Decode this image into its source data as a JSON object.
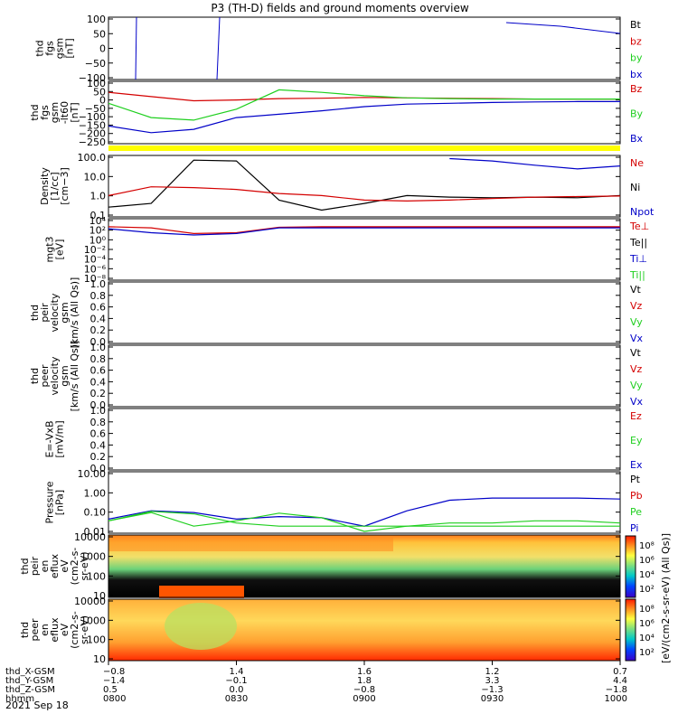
{
  "title": "P3 (TH-D) fields and ground moments overview",
  "colors": {
    "black": "#000000",
    "red": "#d40000",
    "green": "#1fcf1f",
    "blue": "#0000c8",
    "yellow": "#ffff00"
  },
  "panels": [
    {
      "id": "fgs",
      "ylabel": [
        "thd",
        "fgs",
        "gsm",
        "[nT]"
      ],
      "ylim": [
        -100,
        100
      ],
      "ticks": [
        "100",
        "50",
        "0",
        "−50",
        "−100"
      ],
      "legend": [
        "Bt",
        "bz",
        "by",
        "bx"
      ]
    },
    {
      "id": "fgs-filtered",
      "ylabel": [
        "thd",
        "fgs",
        "gsm",
        "-lt60",
        "[nT]"
      ],
      "ylim": [
        -250,
        100
      ],
      "ticks": [
        "100",
        "50",
        "0",
        "−50",
        "−100",
        "−150",
        "−200",
        "−250"
      ],
      "legend": [
        "Bz",
        "By",
        "Bx"
      ]
    },
    {
      "id": "mode-bar",
      "ylabel": [],
      "legend": []
    },
    {
      "id": "density",
      "ylabel": [
        "Density",
        "[1/cc]",
        "[cm−3]"
      ],
      "ylim": [
        0.1,
        300
      ],
      "log": true,
      "ticks": [
        "100.0",
        "10.0",
        "1.0",
        "0.1"
      ],
      "legend": [
        "Ne",
        "Ni",
        "Npot"
      ]
    },
    {
      "id": "temperature",
      "ylabel": [
        "mgt3",
        "[eV]"
      ],
      "ylim": [
        1e-08,
        10000.0
      ],
      "log": true,
      "ticks": [
        "10⁴",
        "10²",
        "10⁰",
        "10⁻²",
        "10⁻⁴",
        "10⁻⁶",
        "10⁻⁸"
      ],
      "legend": [
        "Te⊥",
        "Te||",
        "Ti⊥",
        "Ti||"
      ]
    },
    {
      "id": "peir-velocity",
      "ylabel": [
        "thd",
        "peir",
        "velocity",
        "gsm",
        "[km/s (All Qs)]"
      ],
      "ylim": [
        0,
        1
      ],
      "ticks": [
        "1.0",
        "0.8",
        "0.6",
        "0.4",
        "0.2",
        "0.0"
      ],
      "legend": [
        "Vt",
        "Vz",
        "Vy",
        "Vx"
      ]
    },
    {
      "id": "peer-velocity",
      "ylabel": [
        "thd",
        "peer",
        "velocity",
        "gsm",
        "[km/s (All Qs)]"
      ],
      "ylim": [
        0,
        1
      ],
      "ticks": [
        "1.0",
        "0.8",
        "0.6",
        "0.4",
        "0.2",
        "0.0"
      ],
      "legend": [
        "Vt",
        "Vz",
        "Vy",
        "Vx"
      ]
    },
    {
      "id": "efield",
      "ylabel": [
        "E=-VxB",
        "[mV/m]"
      ],
      "ylim": [
        0,
        1
      ],
      "ticks": [
        "1.0",
        "0.8",
        "0.6",
        "0.4",
        "0.2",
        "0.0"
      ],
      "legend": [
        "Ez",
        "Ey",
        "Ex"
      ]
    },
    {
      "id": "pressure",
      "ylabel": [
        "Pressure",
        "[nPa]"
      ],
      "ylim": [
        0.01,
        20
      ],
      "log": true,
      "ticks": [
        "10.00",
        "1.00",
        "0.10",
        "0.01"
      ],
      "legend": [
        "Pt",
        "Pb",
        "Pe",
        "Pi"
      ]
    },
    {
      "id": "peir-eflux",
      "ylabel": [
        "thd",
        "peir",
        "en",
        "eflux",
        "eV",
        "(cm2-s-",
        "sr-eV)"
      ],
      "ticks": [
        "10000",
        "1000",
        "100",
        "10"
      ],
      "legend": []
    },
    {
      "id": "peer-eflux",
      "ylabel": [
        "thd",
        "peer",
        "en",
        "eflux",
        "eV",
        "(cm2-s-",
        "sr-eV)"
      ],
      "ticks": [
        "10000",
        "1000",
        "100",
        "10"
      ],
      "legend": []
    }
  ],
  "colorbar": {
    "label": "[eV/(cm2-s-sr-eV) (All Qs)]",
    "ticks_top": [
      "10⁸",
      "10⁶",
      "10⁴",
      "10²"
    ],
    "ticks_bottom": [
      "10⁸",
      "10⁶",
      "10⁴",
      "10²"
    ]
  },
  "xaxis": {
    "rows": [
      {
        "label": "thd_X-GSM",
        "values": [
          "−0.8",
          "1.4",
          "1.6",
          "1.2",
          "0.7"
        ]
      },
      {
        "label": "thd_Y-GSM",
        "values": [
          "−1.4",
          "−0.1",
          "1.8",
          "3.3",
          "4.4"
        ]
      },
      {
        "label": "thd_Z-GSM",
        "values": [
          "0.5",
          "0.0",
          "−0.8",
          "−1.3",
          "−1.8"
        ]
      },
      {
        "label": "hhmm",
        "values": [
          "0800",
          "0830",
          "0900",
          "0930",
          "1000"
        ]
      }
    ],
    "date": "2021 Sep 18"
  },
  "chart_data": {
    "type": "line",
    "title": "P3 (TH-D) fields and ground moments overview",
    "x_unit": "UT (hhmm)",
    "x": [
      "0800",
      "0810",
      "0820",
      "0830",
      "0840",
      "0850",
      "0900",
      "0910",
      "0920",
      "0930",
      "0940",
      "0950",
      "1000"
    ],
    "subplots": [
      {
        "name": "thd fgs gsm [nT]",
        "scale": "linear",
        "ylim": [
          -100,
          100
        ],
        "series": [
          {
            "name": "bx",
            "color": "blue",
            "note": "off-scale spike near 0803 and 0825",
            "values": [
              null,
              -100,
              null,
              100,
              null,
              null,
              null,
              null,
              null,
              null,
              null,
              null,
              40
            ]
          }
        ]
      },
      {
        "name": "thd fgs gsm -lt60 [nT]",
        "scale": "linear",
        "ylim": [
          -250,
          100
        ],
        "series": [
          {
            "name": "Bz",
            "values": [
              45,
              20,
              -5,
              0,
              8,
              10,
              15,
              12,
              10,
              8,
              5,
              5,
              5
            ]
          },
          {
            "name": "By",
            "values": [
              -20,
              -105,
              -120,
              -55,
              60,
              45,
              25,
              12,
              8,
              5,
              5,
              5,
              5
            ]
          },
          {
            "name": "Bx",
            "values": [
              -155,
              -195,
              -175,
              -105,
              -85,
              -65,
              -40,
              -25,
              -20,
              -15,
              -12,
              -10,
              -10
            ]
          }
        ]
      },
      {
        "name": "Density [1/cc]",
        "scale": "log",
        "ylim": [
          0.1,
          300
        ],
        "series": [
          {
            "name": "Ne",
            "values": [
              0.3,
              0.5,
              200,
              180,
              0.8,
              0.2,
              0.5,
              1.5,
              1.2,
              1.1,
              1.2,
              1.1,
              1.5
            ]
          },
          {
            "name": "Ni",
            "values": [
              1.5,
              5.0,
              4.5,
              3.5,
              2.0,
              1.5,
              0.8,
              0.7,
              0.8,
              1.0,
              1.2,
              1.3,
              1.4
            ]
          },
          {
            "name": "Npot",
            "values": [
              null,
              null,
              null,
              null,
              null,
              null,
              null,
              null,
              250,
              180,
              100,
              60,
              90
            ]
          }
        ]
      },
      {
        "name": "mgt3 [eV]",
        "scale": "log",
        "ylim": [
          1e-08,
          10000.0
        ],
        "series": [
          {
            "name": "Te⊥",
            "values": [
              500,
              300,
              20,
              30,
              400,
              500,
              500,
              500,
              500,
              500,
              500,
              500,
              500
            ]
          },
          {
            "name": "Ti||",
            "values": [
              200,
              30,
              10,
              20,
              300,
              300,
              300,
              300,
              300,
              300,
              300,
              300,
              300
            ]
          }
        ]
      },
      {
        "name": "Pressure [nPa]",
        "scale": "log",
        "ylim": [
          0.01,
          20
        ],
        "series": [
          {
            "name": "Pi",
            "values": [
              0.05,
              0.15,
              0.12,
              0.05,
              0.07,
              0.06,
              0.02,
              0.15,
              0.6,
              0.8,
              0.8,
              0.8,
              0.7
            ]
          },
          {
            "name": "Pb",
            "values": [
              0.04,
              0.14,
              0.1,
              0.03,
              0.02,
              0.02,
              0.02,
              0.02,
              0.02,
              0.02,
              0.02,
              0.02,
              0.02
            ]
          },
          {
            "name": "Pe",
            "values": [
              0.04,
              0.12,
              0.02,
              0.04,
              0.11,
              0.06,
              0.01,
              0.02,
              0.03,
              0.03,
              0.04,
              0.04,
              0.03
            ]
          }
        ]
      }
    ]
  }
}
